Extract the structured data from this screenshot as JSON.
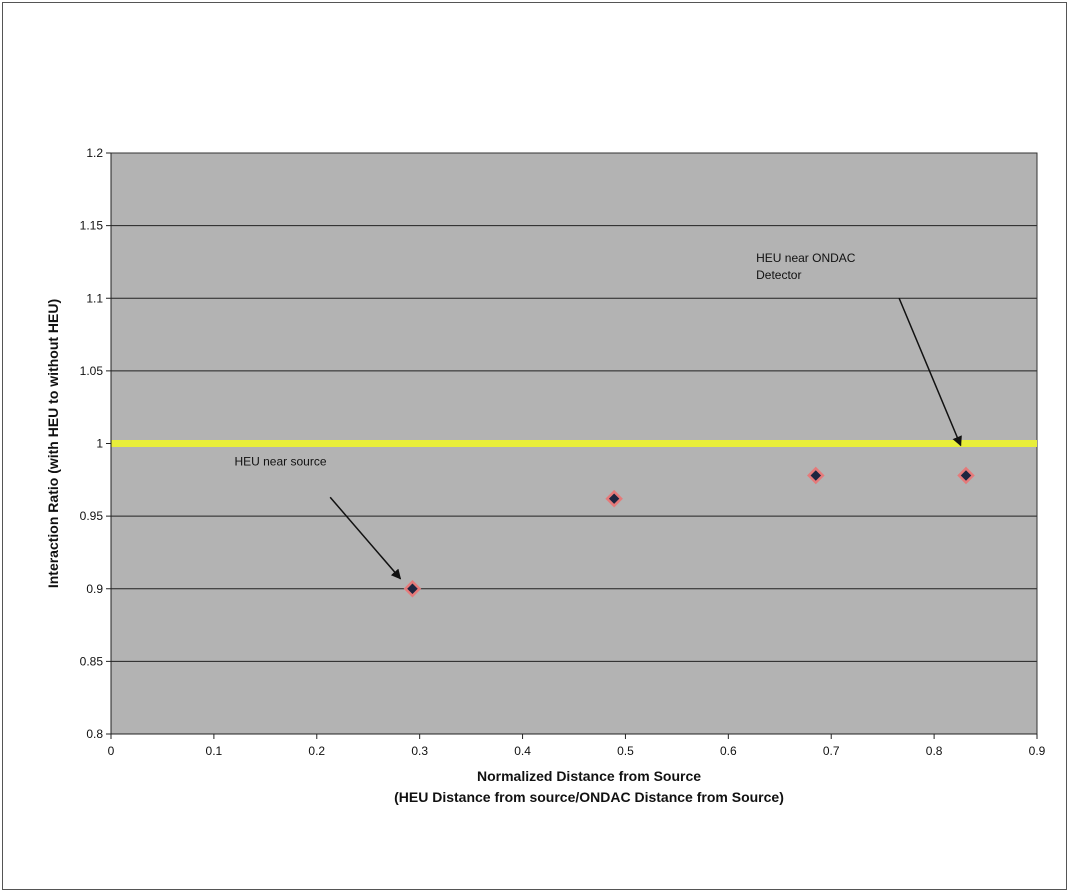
{
  "chart_data": {
    "type": "scatter",
    "title": "",
    "xlabel": "Normalized Distance from Source",
    "xlabel2": "(HEU Distance from source/ONDAC Distance from Source)",
    "ylabel": "Interaction Ratio (with HEU to without HEU)",
    "xlim": [
      0,
      0.9
    ],
    "ylim": [
      0.8,
      1.2
    ],
    "xticks": [
      "0",
      "0.1",
      "0.2",
      "0.3",
      "0.4",
      "0.5",
      "0.6",
      "0.7",
      "0.8",
      "0.9"
    ],
    "yticks": [
      "0.8",
      "0.85",
      "0.9",
      "0.95",
      "1",
      "1.05",
      "1.1",
      "1.15",
      "1.2"
    ],
    "grid": "horizontal",
    "points": [
      {
        "x": 0.293,
        "y": 0.9
      },
      {
        "x": 0.489,
        "y": 0.962
      },
      {
        "x": 0.685,
        "y": 0.978
      },
      {
        "x": 0.831,
        "y": 0.978
      }
    ],
    "reference_line": {
      "y": 1.0,
      "color": "#e8ee3a"
    },
    "annotations": [
      {
        "text": "HEU near source",
        "x": 0.293,
        "y": 0.9
      },
      {
        "text": [
          "HEU near ONDAC",
          "Detector"
        ],
        "x": 0.82,
        "y": 1.0
      }
    ],
    "colors": {
      "plot_bg": "#b3b3b3",
      "marker_fill": "#1e2540",
      "marker_edge": "#e57a7a",
      "grid": "#222222"
    }
  }
}
